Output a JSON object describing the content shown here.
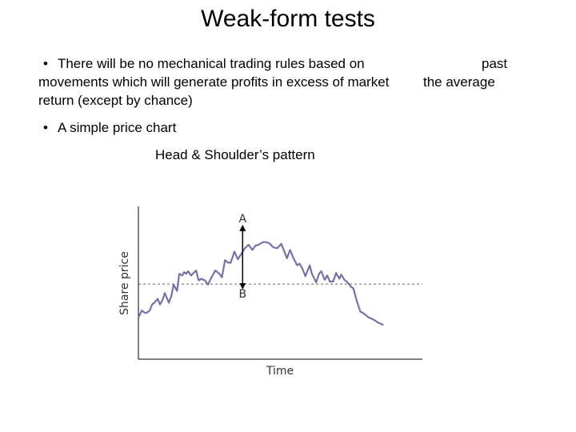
{
  "slide": {
    "title": "Weak-form tests",
    "bullet1_marker": "•",
    "bullet1": "There will be no mechanical trading rules based on movements which will generate profits in excess of market return (except by chance)",
    "side_word1": "past",
    "side_word2": "the average",
    "bullet2_marker": "•",
    "bullet2": "A simple price chart",
    "chart_caption": "Head & Shoulder’s pattern"
  },
  "chart_data": {
    "type": "line",
    "title": "Head & Shoulder’s pattern",
    "xlabel": "Time",
    "ylabel": "Share price",
    "xlim": [
      0,
      100
    ],
    "ylim": [
      0,
      100
    ],
    "grid": false,
    "series": [
      {
        "color": "#7b6fa3",
        "x": [
          0,
          1.2,
          2.3,
          2.8,
          4,
          4.8,
          5.6,
          6.8,
          7.6,
          8.5,
          9.3,
          10.7,
          11.6,
          12.4,
          13.6,
          14.4,
          15.5,
          16.1,
          16.9,
          17.5,
          18.6,
          20.3,
          21.2,
          22.2,
          23.4,
          24.5,
          25.6,
          27.1,
          28.5,
          29.4,
          30.5,
          31.6,
          32.5,
          33.8,
          35,
          36.4,
          37.3,
          38.8,
          40.1,
          41.2,
          42.3,
          43.8,
          45.2,
          46.3,
          47.5,
          48.9,
          50.3,
          51.4,
          52.3,
          53.4,
          54.5,
          55.9,
          56.8,
          57.9,
          58.8,
          60.3,
          61.1,
          62.6,
          63.6,
          64.4,
          65.6,
          66.5,
          67.4,
          68.6,
          69.6,
          70.8,
          71.4,
          72.5,
          73.7,
          74.8,
          75.7,
          76.9,
          78.1,
          79.6,
          81,
          82.3,
          83.5,
          84.3,
          85.7,
          86.3
        ],
        "y": [
          27.6,
          32.2,
          30.6,
          30.6,
          32.2,
          36.2,
          37.3,
          39.9,
          36.2,
          39.3,
          43.8,
          37.3,
          41.8,
          49.3,
          45.2,
          56.5,
          55.4,
          57.6,
          56.5,
          58.2,
          55.4,
          58.7,
          52.1,
          53.2,
          52.1,
          49.3,
          53.7,
          58.7,
          56.5,
          54.2,
          65.5,
          63.8,
          63.8,
          71.2,
          66.1,
          70.1,
          72.9,
          75.7,
          72.3,
          75.1,
          75.7,
          77.4,
          77.4,
          76.3,
          74,
          73.4,
          76.3,
          71.2,
          66.7,
          72.3,
          67.2,
          62.1,
          63.2,
          59.3,
          54.8,
          62.1,
          56.5,
          50.8,
          56.5,
          58.2,
          52.5,
          55.4,
          51.4,
          51.4,
          57.1,
          53.2,
          56,
          52.5,
          50.8,
          48,
          46.9,
          38.4,
          31.6,
          29.9,
          27.7,
          26.6,
          25.4,
          24.3,
          23.2,
          22.6
        ]
      }
    ],
    "reference_line": {
      "y": 49.7,
      "style": "dashed"
    },
    "annotations": [
      {
        "text": "A",
        "x": 36.7,
        "y": 93.2
      },
      {
        "text": "B",
        "x": 36.7,
        "y": 43.5
      }
    ]
  }
}
